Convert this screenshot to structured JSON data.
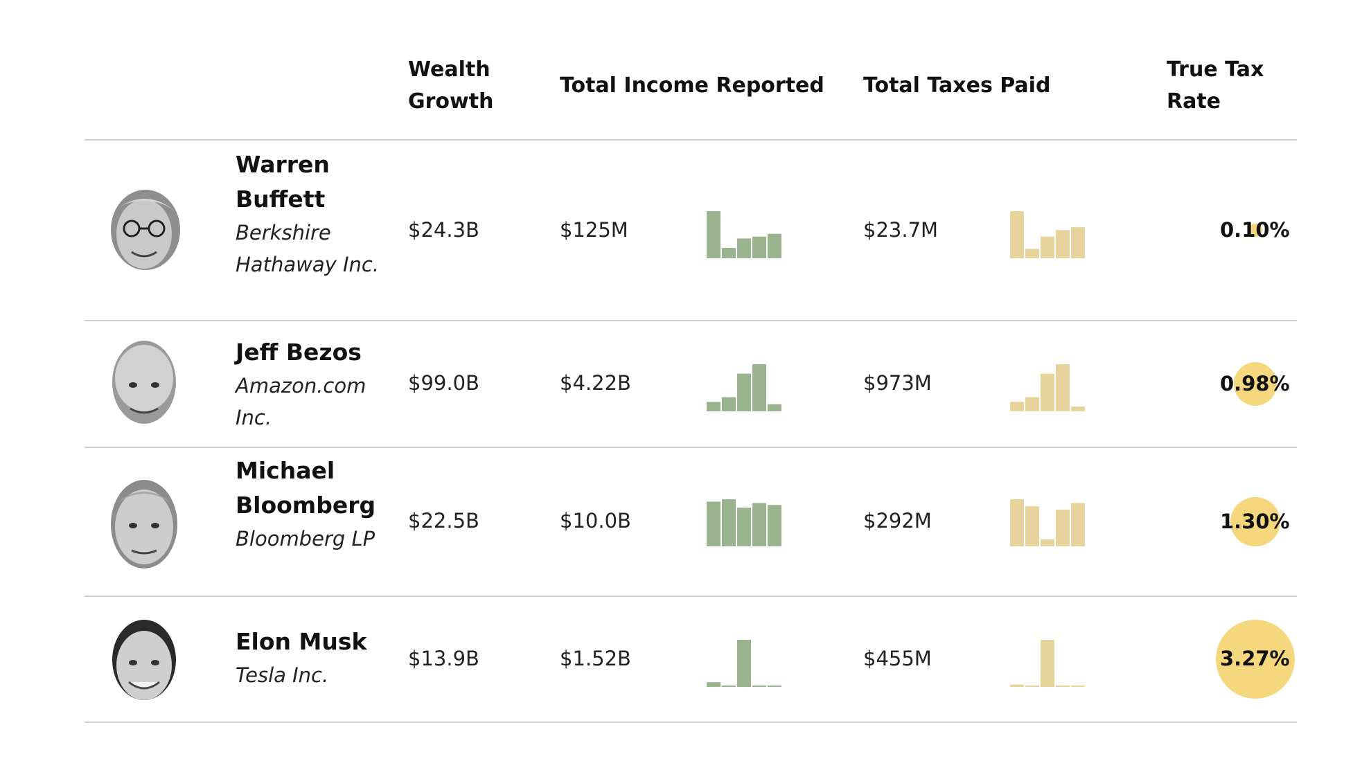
{
  "headers": {
    "wealth": "Wealth Growth",
    "income": "Total Income Reported",
    "taxes": "Total Taxes Paid",
    "rate": "True Tax Rate"
  },
  "colors": {
    "income_bars": "#9ab48f",
    "tax_bars": "#e6d49c",
    "rate_circle": "#f5d77d",
    "rule": "#cfcfcf"
  },
  "icons": {
    "portrait": "grayscale-portrait-photo"
  },
  "chart_data": {
    "type": "table",
    "columns": [
      "Wealth Growth",
      "Total Income Reported",
      "Total Taxes Paid",
      "True Tax Rate"
    ],
    "rows": [
      {
        "name": "Warren Buffett",
        "company": "Berkshire Hathaway Inc.",
        "wealth_growth": "$24.3B",
        "total_income": "$125M",
        "total_taxes": "$23.7M",
        "true_tax_rate": "0.10%",
        "rate_value": 0.1,
        "income_trend": [
          1.0,
          0.22,
          0.42,
          0.46,
          0.52
        ],
        "taxes_trend": [
          1.0,
          0.2,
          0.46,
          0.6,
          0.66
        ]
      },
      {
        "name": "Jeff Bezos",
        "company": "Amazon.com Inc.",
        "wealth_growth": "$99.0B",
        "total_income": "$4.22B",
        "total_taxes": "$973M",
        "true_tax_rate": "0.98%",
        "rate_value": 0.98,
        "income_trend": [
          0.2,
          0.3,
          0.8,
          1.0,
          0.15
        ],
        "taxes_trend": [
          0.2,
          0.3,
          0.8,
          1.0,
          0.1
        ]
      },
      {
        "name": "Michael Bloomberg",
        "company": "Bloomberg LP",
        "wealth_growth": "$22.5B",
        "total_income": "$10.0B",
        "total_taxes": "$292M",
        "true_tax_rate": "1.30%",
        "rate_value": 1.3,
        "income_trend": [
          0.95,
          1.0,
          0.82,
          0.92,
          0.88
        ],
        "taxes_trend": [
          1.0,
          0.85,
          0.15,
          0.78,
          0.92
        ]
      },
      {
        "name": "Elon Musk",
        "company": "Tesla Inc.",
        "wealth_growth": "$13.9B",
        "total_income": "$1.52B",
        "total_taxes": "$455M",
        "true_tax_rate": "3.27%",
        "rate_value": 3.27,
        "income_trend": [
          0.1,
          0.02,
          1.0,
          0.02,
          0.02
        ],
        "taxes_trend": [
          0.05,
          0.02,
          1.0,
          0.02,
          0.02
        ]
      }
    ]
  }
}
